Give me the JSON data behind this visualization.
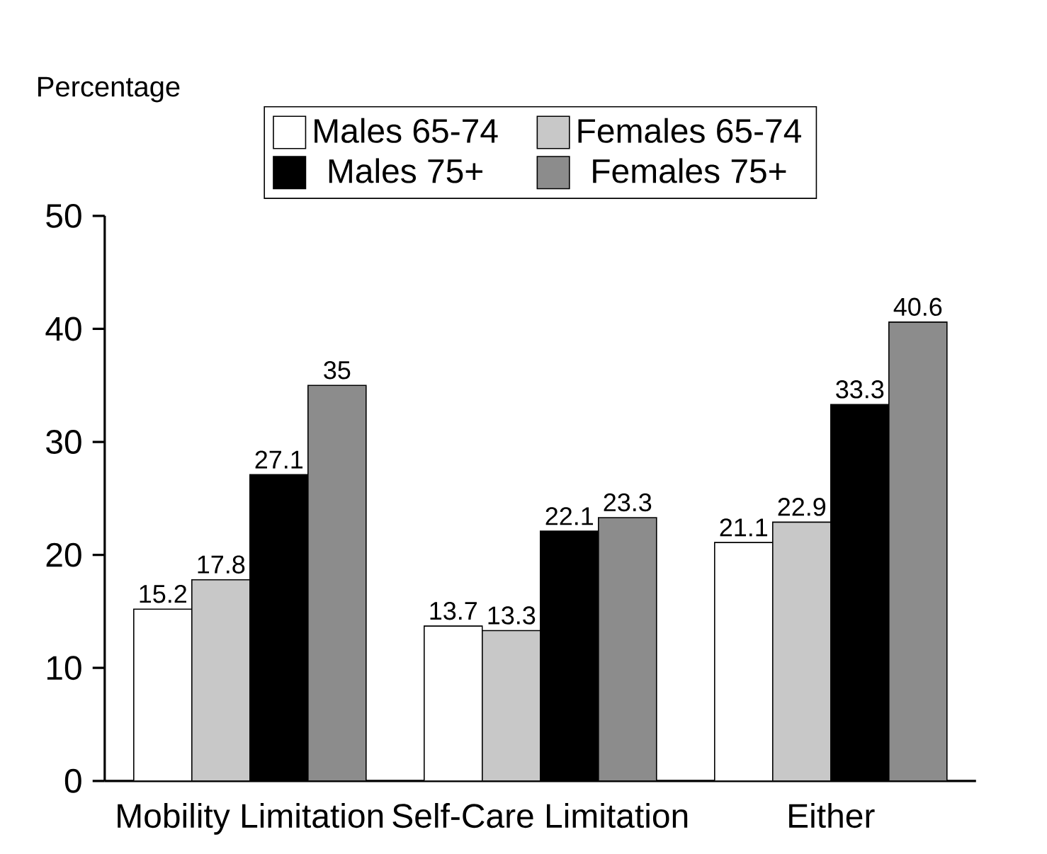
{
  "chart_data": {
    "type": "bar",
    "ylabel": "Percentage",
    "categories": [
      "Mobility Limitation",
      "Self-Care Limitation",
      "Either"
    ],
    "series": [
      {
        "name": "Males 65-74",
        "color": "#ffffff",
        "values": [
          15.2,
          13.7,
          21.1
        ]
      },
      {
        "name": "Females 65-74",
        "color": "#c8c8c8",
        "values": [
          17.8,
          13.3,
          22.9
        ]
      },
      {
        "name": "Males 75+",
        "color": "#000000",
        "values": [
          27.1,
          22.1,
          33.3
        ]
      },
      {
        "name": "Females 75+",
        "color": "#8c8c8c",
        "values": [
          35,
          23.3,
          40.6
        ]
      }
    ],
    "ylim": [
      0,
      50
    ],
    "yticks": [
      0,
      10,
      20,
      30,
      40,
      50
    ],
    "grid": false,
    "legend": "top",
    "data_labels": true
  }
}
